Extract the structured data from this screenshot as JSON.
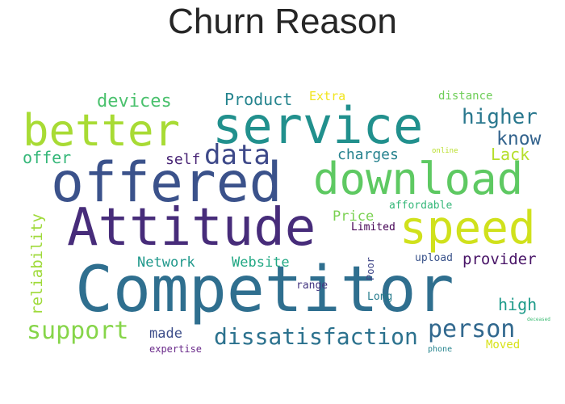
{
  "title": "Churn Reason",
  "cloud": {
    "words": [
      {
        "text": "Competitor",
        "color": "#2f6f8f"
      },
      {
        "text": "Attitude",
        "color": "#472c7a"
      },
      {
        "text": "offered",
        "color": "#3b528b"
      },
      {
        "text": "service",
        "color": "#21908d"
      },
      {
        "text": "better",
        "color": "#a8db34"
      },
      {
        "text": "download",
        "color": "#5ec962"
      },
      {
        "text": "speed",
        "color": "#d0e11c"
      },
      {
        "text": "support",
        "color": "#86d549"
      },
      {
        "text": "dissatisfaction",
        "color": "#2c728e"
      },
      {
        "text": "person",
        "color": "#31688e"
      },
      {
        "text": "data",
        "color": "#3e4989"
      },
      {
        "text": "higher",
        "color": "#2a788e"
      },
      {
        "text": "know",
        "color": "#33638d"
      },
      {
        "text": "devices",
        "color": "#4ac16d"
      },
      {
        "text": "Product",
        "color": "#25848e"
      },
      {
        "text": "Extra",
        "color": "#f1e51d"
      },
      {
        "text": "distance",
        "color": "#6ece58"
      },
      {
        "text": "offer",
        "color": "#35b779"
      },
      {
        "text": "self",
        "color": "#482475"
      },
      {
        "text": "charges",
        "color": "#26828e"
      },
      {
        "text": "Lack",
        "color": "#b5de2b"
      },
      {
        "text": "online",
        "color": "#b8de29"
      },
      {
        "text": "affordable",
        "color": "#35b779"
      },
      {
        "text": "Price",
        "color": "#7ad151"
      },
      {
        "text": "Limited",
        "color": "#440154"
      },
      {
        "text": "reliability",
        "color": "#9fda3a"
      },
      {
        "text": "Network",
        "color": "#1f988b"
      },
      {
        "text": "Website",
        "color": "#22a884"
      },
      {
        "text": "provider",
        "color": "#481467"
      },
      {
        "text": "upload",
        "color": "#3a538b"
      },
      {
        "text": "Poor",
        "color": "#404688"
      },
      {
        "text": "range",
        "color": "#453781"
      },
      {
        "text": "Long",
        "color": "#287d8e"
      },
      {
        "text": "high",
        "color": "#1e9b8a"
      },
      {
        "text": "made",
        "color": "#3d4e8a"
      },
      {
        "text": "expertise",
        "color": "#6a2a8a"
      },
      {
        "text": "phone",
        "color": "#25848e"
      },
      {
        "text": "Moved",
        "color": "#d8e219"
      },
      {
        "text": "deceased",
        "color": "#3dbc74"
      }
    ]
  }
}
